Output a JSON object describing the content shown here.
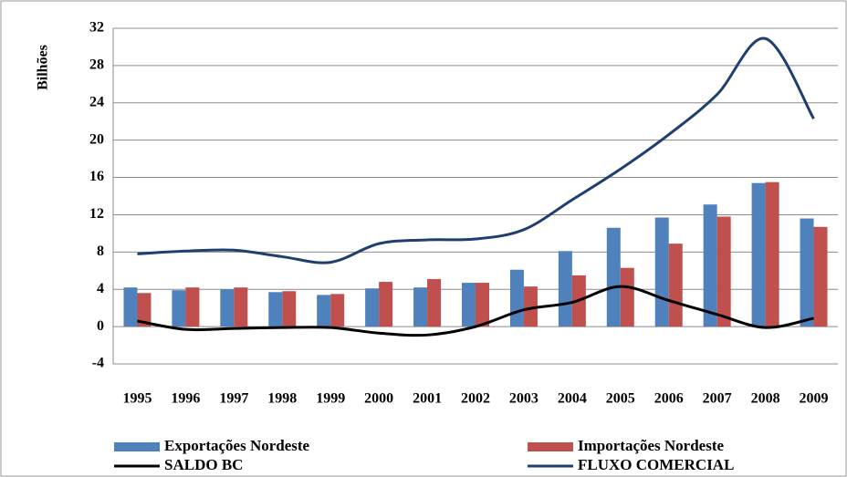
{
  "chart_data": {
    "type": "bar",
    "y_label": "Bilhões",
    "categories": [
      "1995",
      "1996",
      "1997",
      "1998",
      "1999",
      "2000",
      "2001",
      "2002",
      "2003",
      "2004",
      "2005",
      "2006",
      "2007",
      "2008",
      "2009"
    ],
    "series": [
      {
        "name": "Exportações Nordeste",
        "type": "bar",
        "color": "#4f81bd",
        "values": [
          4.2,
          3.9,
          4.0,
          3.7,
          3.4,
          4.1,
          4.2,
          4.7,
          6.1,
          8.1,
          10.6,
          11.7,
          13.1,
          15.4,
          11.6
        ]
      },
      {
        "name": "Importações Nordeste",
        "type": "bar",
        "color": "#c0504d",
        "values": [
          3.6,
          4.2,
          4.2,
          3.8,
          3.5,
          4.8,
          5.1,
          4.7,
          4.3,
          5.5,
          6.3,
          8.9,
          11.8,
          15.5,
          10.7
        ]
      },
      {
        "name": "SALDO BC",
        "type": "line",
        "color": "#000000",
        "values": [
          0.6,
          -0.3,
          -0.2,
          -0.1,
          -0.1,
          -0.7,
          -0.9,
          0.0,
          1.8,
          2.6,
          4.3,
          2.8,
          1.3,
          -0.1,
          0.9
        ]
      },
      {
        "name": "FLUXO COMERCIAL",
        "type": "line",
        "color": "#1f3f6e",
        "values": [
          7.8,
          8.1,
          8.2,
          7.5,
          6.9,
          8.9,
          9.3,
          9.4,
          10.4,
          13.6,
          16.9,
          20.6,
          24.9,
          30.9,
          22.3
        ]
      }
    ],
    "ylim": [
      -4,
      32
    ],
    "yticks": [
      -4,
      0,
      4,
      8,
      12,
      16,
      20,
      24,
      28,
      32
    ],
    "grid": true
  }
}
